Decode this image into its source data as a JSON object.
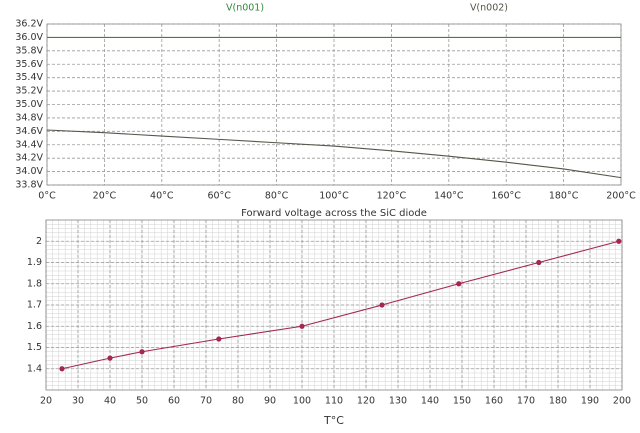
{
  "chart_data": [
    {
      "type": "line",
      "x": [
        0,
        20,
        40,
        60,
        80,
        100,
        120,
        140,
        160,
        180,
        200
      ],
      "series": [
        {
          "name": "V(n001)",
          "color": "#2e8b3a",
          "values": [
            36.0,
            36.0,
            36.0,
            36.0,
            36.0,
            36.0,
            36.0,
            36.0,
            36.0,
            36.0,
            36.0
          ]
        },
        {
          "name": "V(n002)",
          "color": "#55554a",
          "values": [
            34.62,
            34.58,
            34.53,
            34.48,
            34.43,
            34.38,
            34.31,
            34.23,
            34.14,
            34.04,
            33.91
          ]
        }
      ],
      "xlim": [
        0,
        200
      ],
      "xticks": [
        {
          "value": 0,
          "label": "0°C"
        },
        {
          "value": 20,
          "label": "20°C"
        },
        {
          "value": 40,
          "label": "40°C"
        },
        {
          "value": 60,
          "label": "60°C"
        },
        {
          "value": 80,
          "label": "80°C"
        },
        {
          "value": 100,
          "label": "100°C"
        },
        {
          "value": 120,
          "label": "120°C"
        },
        {
          "value": 140,
          "label": "140°C"
        },
        {
          "value": 160,
          "label": "160°C"
        },
        {
          "value": 180,
          "label": "180°C"
        },
        {
          "value": 200,
          "label": "200°C"
        }
      ],
      "ylim": [
        33.8,
        36.2
      ],
      "yticks": [
        {
          "value": 33.8,
          "label": "33.8V"
        },
        {
          "value": 34.0,
          "label": "34.0V"
        },
        {
          "value": 34.2,
          "label": "34.2V"
        },
        {
          "value": 34.4,
          "label": "34.4V"
        },
        {
          "value": 34.6,
          "label": "34.6V"
        },
        {
          "value": 34.8,
          "label": "34.8V"
        },
        {
          "value": 35.0,
          "label": "35.0V"
        },
        {
          "value": 35.2,
          "label": "35.2V"
        },
        {
          "value": 35.4,
          "label": "35.4V"
        },
        {
          "value": 35.6,
          "label": "35.6V"
        },
        {
          "value": 35.8,
          "label": "35.8V"
        },
        {
          "value": 36.0,
          "label": "36.0V"
        },
        {
          "value": 36.2,
          "label": "36.2V"
        }
      ],
      "grid": true
    },
    {
      "type": "line",
      "title": "Forward voltage across the SiC diode",
      "x_label": "T°C",
      "x": [
        25,
        40,
        50,
        74,
        100,
        125,
        149,
        174,
        199
      ],
      "series": [
        {
          "color": "#a3284f",
          "values": [
            1.4,
            1.45,
            1.48,
            1.54,
            1.6,
            1.7,
            1.8,
            1.9,
            2.0
          ]
        }
      ],
      "markers": true,
      "xlim": [
        20,
        200
      ],
      "xticks": [
        20,
        30,
        40,
        50,
        60,
        70,
        80,
        90,
        100,
        110,
        120,
        130,
        140,
        150,
        160,
        170,
        180,
        190,
        200
      ],
      "ylim": [
        1.3,
        2.1
      ],
      "yticks": [
        1.4,
        1.5,
        1.6,
        1.7,
        1.8,
        1.9,
        2
      ],
      "grid": true,
      "minor_grid": true
    }
  ]
}
